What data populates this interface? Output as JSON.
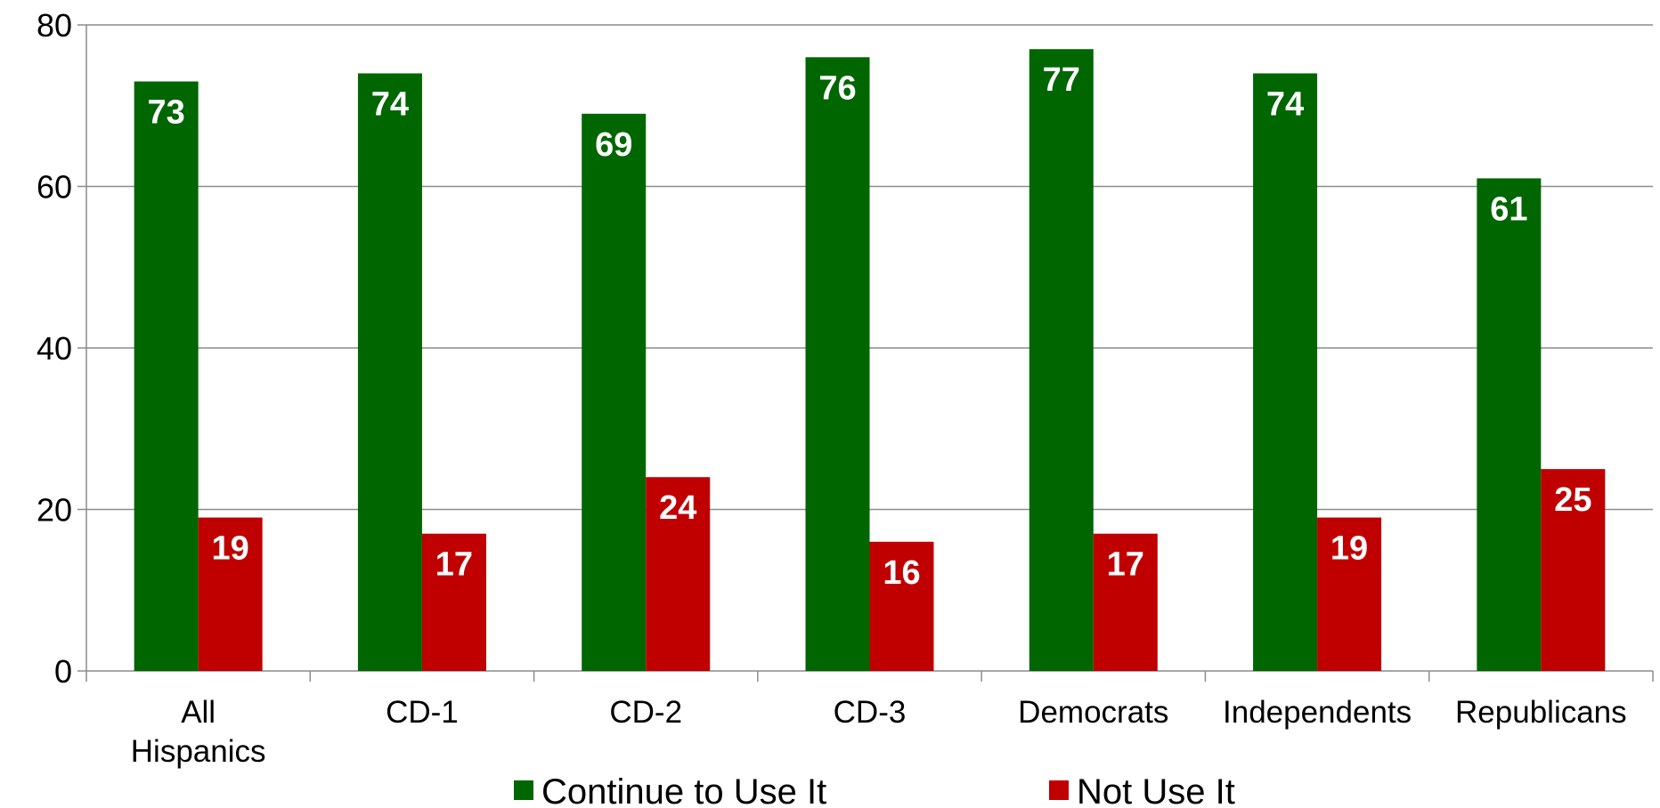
{
  "chart_data": {
    "type": "bar",
    "title": "",
    "xlabel": "",
    "ylabel": "",
    "ylim": [
      0,
      80
    ],
    "yticks": [
      0,
      20,
      40,
      60,
      80
    ],
    "grid": true,
    "legend_position": "bottom",
    "categories": [
      [
        "All",
        "Hispanics"
      ],
      [
        "CD-1"
      ],
      [
        "CD-2"
      ],
      [
        "CD-3"
      ],
      [
        "Democrats"
      ],
      [
        "Independents"
      ],
      [
        "Republicans"
      ]
    ],
    "series": [
      {
        "name": "Continue to Use It",
        "color": "#006600",
        "values": [
          73,
          74,
          69,
          76,
          77,
          74,
          61
        ]
      },
      {
        "name": "Not Use It",
        "color": "#c00000",
        "values": [
          19,
          17,
          24,
          16,
          17,
          19,
          25
        ]
      }
    ]
  }
}
